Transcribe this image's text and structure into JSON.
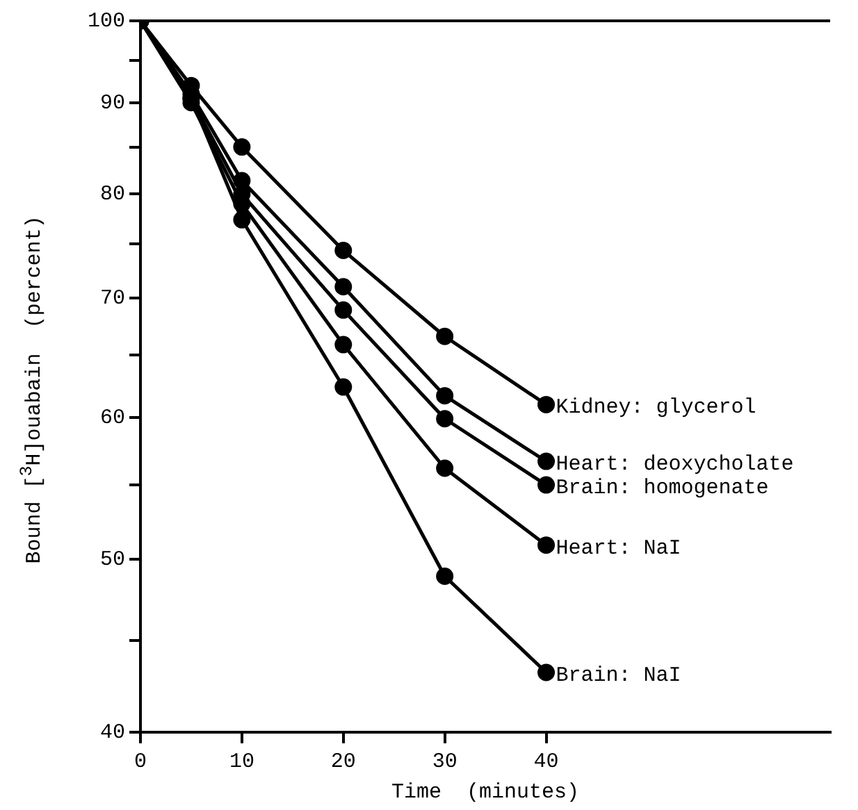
{
  "chart_data": {
    "type": "line",
    "xlabel": "Time  (minutes)",
    "ylabel": "Bound [$^{3}$H]ouabain  (percent)",
    "log": "y",
    "xlim": [
      0,
      68
    ],
    "xticks": [
      0,
      10,
      20,
      30,
      40
    ],
    "ylim": [
      40,
      100
    ],
    "yticks": [
      40,
      {
        "value": 45,
        "label": null
      },
      50,
      {
        "value": 55,
        "label": null
      },
      60,
      {
        "value": 65,
        "label": null
      },
      70,
      {
        "value": 75,
        "label": null
      },
      80,
      {
        "value": 85,
        "label": null
      },
      90,
      {
        "value": 95,
        "label": null
      },
      100
    ],
    "grid": false,
    "legend": false,
    "marker": "circle",
    "line_style": "solid",
    "x": [
      0,
      5,
      10,
      20,
      30,
      40
    ],
    "series": [
      {
        "name": "Kidney: glycerol",
        "color": "#000000",
        "values": [
          100,
          92,
          85.0,
          74.4,
          66.6,
          61.0
        ]
      },
      {
        "name": "Heart: deoxycholate",
        "color": "#000000",
        "values": [
          100,
          91,
          81.4,
          71.0,
          61.7,
          56.7
        ]
      },
      {
        "name": "Brain: homogenate",
        "color": "#000000",
        "values": [
          100,
          90.5,
          80.0,
          68.9,
          59.9,
          55.0
        ]
      },
      {
        "name": "Heart: NaI",
        "color": "#000000",
        "values": [
          100,
          90,
          79,
          65.9,
          56.2,
          50.9
        ]
      },
      {
        "name": "Brain: NaI",
        "color": "#000000",
        "values": [
          100,
          90.5,
          77.4,
          62.4,
          48.9,
          43.2
        ]
      }
    ]
  }
}
